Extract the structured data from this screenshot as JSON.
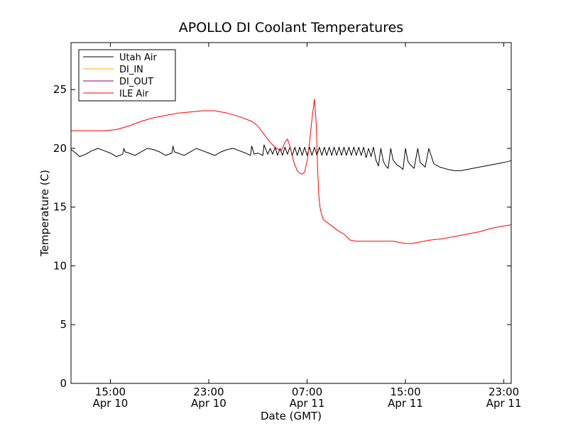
{
  "chart_data": {
    "type": "line",
    "title": "APOLLO DI Coolant Temperatures",
    "xlabel": "Date (GMT)",
    "ylabel": "Temperature (C)",
    "x_unit": "hours",
    "xlim": [
      11.8,
      47.6
    ],
    "ylim": [
      0,
      29
    ],
    "yticks": [
      0,
      5,
      10,
      15,
      20,
      25
    ],
    "xticks": [
      {
        "x": 15,
        "line1": "15:00",
        "line2": "Apr 10"
      },
      {
        "x": 23,
        "line1": "23:00",
        "line2": "Apr 10"
      },
      {
        "x": 31,
        "line1": "07:00",
        "line2": "Apr 11"
      },
      {
        "x": 39,
        "line1": "15:00",
        "line2": "Apr 11"
      },
      {
        "x": 47,
        "line1": "23:00",
        "line2": "Apr 11"
      }
    ],
    "legend_position": "top-left",
    "series": [
      {
        "name": "Utah Air",
        "color": "#000000",
        "x": [
          11.8,
          12.2,
          12.5,
          13.0,
          13.5,
          14.0,
          14.5,
          15.0,
          15.5,
          16.0,
          16.1,
          16.2,
          16.5,
          17.0,
          17.5,
          18.0,
          18.5,
          19.0,
          19.5,
          20.0,
          20.1,
          20.2,
          20.5,
          21.0,
          21.5,
          22.0,
          22.5,
          23.0,
          23.5,
          24.0,
          24.5,
          25.0,
          25.5,
          26.0,
          26.4,
          26.5,
          26.7,
          27.0,
          27.4,
          27.5,
          27.8,
          28.0,
          28.2,
          28.4,
          28.6,
          28.8,
          29.0,
          29.2,
          29.4,
          29.6,
          29.8,
          30.0,
          30.2,
          30.4,
          30.6,
          30.8,
          31.0,
          31.2,
          31.4,
          31.6,
          31.8,
          32.0,
          32.2,
          32.4,
          32.6,
          32.8,
          33.0,
          33.2,
          33.4,
          33.6,
          33.8,
          34.0,
          34.2,
          34.4,
          34.6,
          34.8,
          35.0,
          35.2,
          35.4,
          35.6,
          35.8,
          36.0,
          36.2,
          36.4,
          36.6,
          36.8,
          37.0,
          37.2,
          37.4,
          37.6,
          37.8,
          38.0,
          38.3,
          38.6,
          38.8,
          39.0,
          39.2,
          39.4,
          39.7,
          40.0,
          40.2,
          40.4,
          40.6,
          40.9,
          41.3,
          41.8,
          42.5,
          43.0,
          43.5,
          44.0,
          45.0,
          46.0,
          47.0,
          47.6
        ],
        "y": [
          19.9,
          19.6,
          19.3,
          19.5,
          19.8,
          20.0,
          19.8,
          19.6,
          19.3,
          19.5,
          20.0,
          19.7,
          19.6,
          19.4,
          19.7,
          20.0,
          19.9,
          19.7,
          19.4,
          19.6,
          20.2,
          19.7,
          19.6,
          19.4,
          19.7,
          20.0,
          19.8,
          19.6,
          19.4,
          19.7,
          19.9,
          20.0,
          19.8,
          19.6,
          19.4,
          20.2,
          19.5,
          19.6,
          19.4,
          20.3,
          19.5,
          20.0,
          19.5,
          20.1,
          19.4,
          20.0,
          19.4,
          20.1,
          19.5,
          20.1,
          19.4,
          20.1,
          19.4,
          20.1,
          19.4,
          20.1,
          19.4,
          20.1,
          19.4,
          20.1,
          19.4,
          20.1,
          19.4,
          20.1,
          19.4,
          20.1,
          19.4,
          20.1,
          19.4,
          20.1,
          19.4,
          20.1,
          19.4,
          20.1,
          19.4,
          20.1,
          19.4,
          20.1,
          19.4,
          20.1,
          19.2,
          20.0,
          19.3,
          20.1,
          19.0,
          18.5,
          20.0,
          18.9,
          18.5,
          18.3,
          20.0,
          19.0,
          18.6,
          18.4,
          18.2,
          20.0,
          18.9,
          18.6,
          18.3,
          20.0,
          18.8,
          18.6,
          18.4,
          20.0,
          18.7,
          18.4,
          18.2,
          18.1,
          18.1,
          18.2,
          18.4,
          18.6,
          18.8,
          18.95
        ]
      },
      {
        "name": "DI_IN",
        "color": "#ffb000",
        "x": [],
        "y": []
      },
      {
        "name": "DI_OUT",
        "color": "#800080",
        "x": [],
        "y": []
      },
      {
        "name": "ILE Air",
        "color": "#ff0000",
        "x": [
          11.8,
          12.5,
          13.5,
          14.5,
          15.5,
          16.5,
          17.5,
          18.5,
          19.5,
          20.5,
          21.5,
          22.5,
          23.0,
          23.5,
          24.5,
          25.5,
          26.5,
          27.0,
          27.5,
          28.0,
          28.5,
          28.9,
          29.2,
          29.4,
          29.6,
          29.8,
          30.0,
          30.2,
          30.4,
          30.6,
          30.8,
          31.0,
          31.2,
          31.4,
          31.6,
          31.75,
          31.85,
          31.95,
          32.05,
          32.15,
          32.3,
          32.5,
          33.0,
          33.5,
          34.0,
          34.5,
          35.0,
          36.0,
          37.0,
          38.0,
          39.0,
          39.5,
          40.0,
          40.5,
          41.0,
          42.0,
          43.0,
          44.0,
          45.0,
          46.0,
          47.0,
          47.6
        ],
        "y": [
          21.5,
          21.5,
          21.5,
          21.5,
          21.6,
          21.9,
          22.3,
          22.6,
          22.8,
          23.0,
          23.1,
          23.2,
          23.2,
          23.2,
          23.0,
          22.7,
          22.3,
          21.9,
          21.2,
          20.5,
          20.0,
          19.8,
          20.5,
          20.8,
          20.2,
          19.3,
          18.6,
          18.1,
          17.9,
          17.8,
          18.0,
          18.9,
          20.5,
          22.5,
          24.2,
          22.0,
          18.5,
          16.0,
          15.0,
          14.5,
          14.0,
          13.8,
          13.4,
          13.0,
          12.7,
          12.2,
          12.1,
          12.1,
          12.1,
          12.1,
          11.9,
          11.9,
          12.0,
          12.1,
          12.2,
          12.3,
          12.5,
          12.7,
          12.9,
          13.2,
          13.4,
          13.5
        ]
      }
    ]
  }
}
